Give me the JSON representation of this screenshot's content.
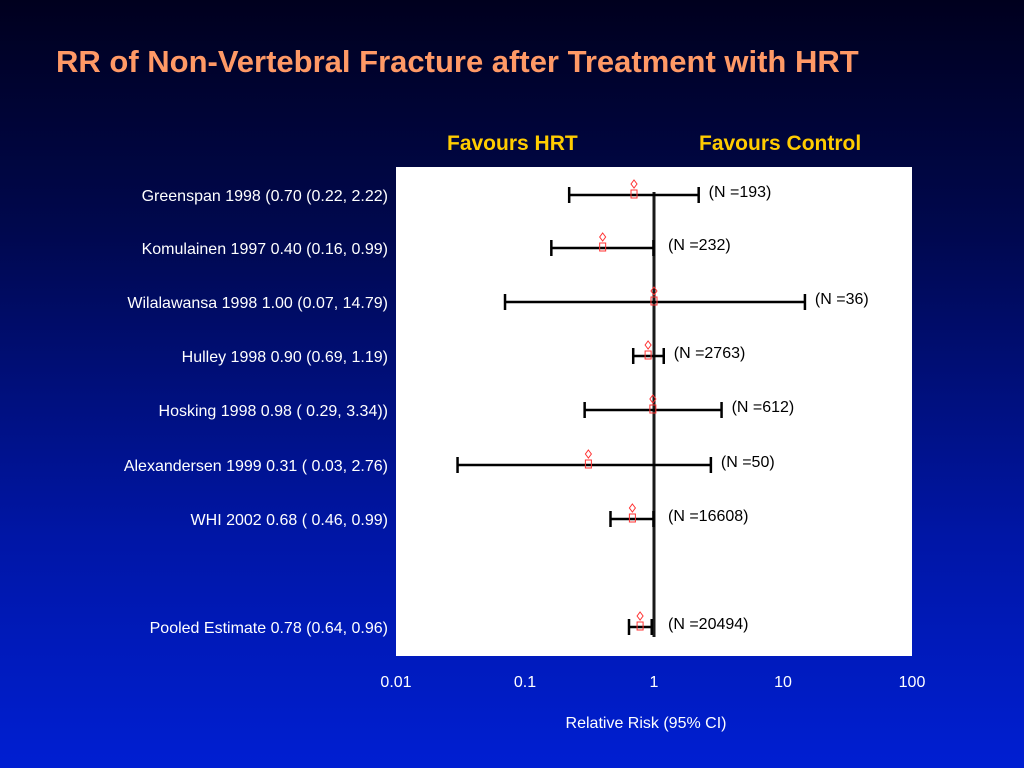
{
  "slide": {
    "title": "RR of Non-Vertebral Fracture after Treatment with HRT",
    "favours_left": "Favours HRT",
    "favours_right": "Favours Control"
  },
  "chart_data": {
    "type": "forest",
    "title": "RR of Non-Vertebral Fracture after Treatment with HRT",
    "xlabel": "Relative Risk (95% CI)",
    "xscale": "log",
    "xlim": [
      0.01,
      100
    ],
    "x_ticks": [
      "0.01",
      "0.1",
      "1",
      "10",
      "100"
    ],
    "x_tick_values": [
      0.01,
      0.1,
      1,
      10,
      100
    ],
    "reference_line": 1,
    "background_color": "#ffffff",
    "line_color": "#000000",
    "marker_color": "#ff3333",
    "rows": [
      {
        "label": "Greenspan 1998 (0.70 (0.22, 2.22)",
        "estimate": 0.7,
        "lower": 0.22,
        "upper": 2.22,
        "n_label": "(N =193)"
      },
      {
        "label": "Komulainen 1997 0.40 (0.16, 0.99)",
        "estimate": 0.4,
        "lower": 0.16,
        "upper": 0.99,
        "n_label": "(N =232)"
      },
      {
        "label": "Wilalawansa 1998  1.00 (0.07, 14.79)",
        "estimate": 1.0,
        "lower": 0.07,
        "upper": 14.79,
        "n_label": "(N =36)"
      },
      {
        "label": "Hulley 1998  0.90 (0.69, 1.19)",
        "estimate": 0.9,
        "lower": 0.69,
        "upper": 1.19,
        "n_label": "(N =2763)"
      },
      {
        "label": "Hosking 1998  0.98 ( 0.29, 3.34))",
        "estimate": 0.98,
        "lower": 0.29,
        "upper": 3.34,
        "n_label": "(N =612)"
      },
      {
        "label": "Alexandersen 1999  0.31 ( 0.03, 2.76)",
        "estimate": 0.31,
        "lower": 0.03,
        "upper": 2.76,
        "n_label": "(N =50)"
      },
      {
        "label": "WHI  2002 0.68 ( 0.46, 0.99)",
        "estimate": 0.68,
        "lower": 0.46,
        "upper": 0.99,
        "n_label": "(N =16608)"
      },
      {
        "label": "Pooled Estimate 0.78 (0.64, 0.96)",
        "estimate": 0.78,
        "lower": 0.64,
        "upper": 0.96,
        "n_label": "(N =20494)"
      }
    ]
  }
}
